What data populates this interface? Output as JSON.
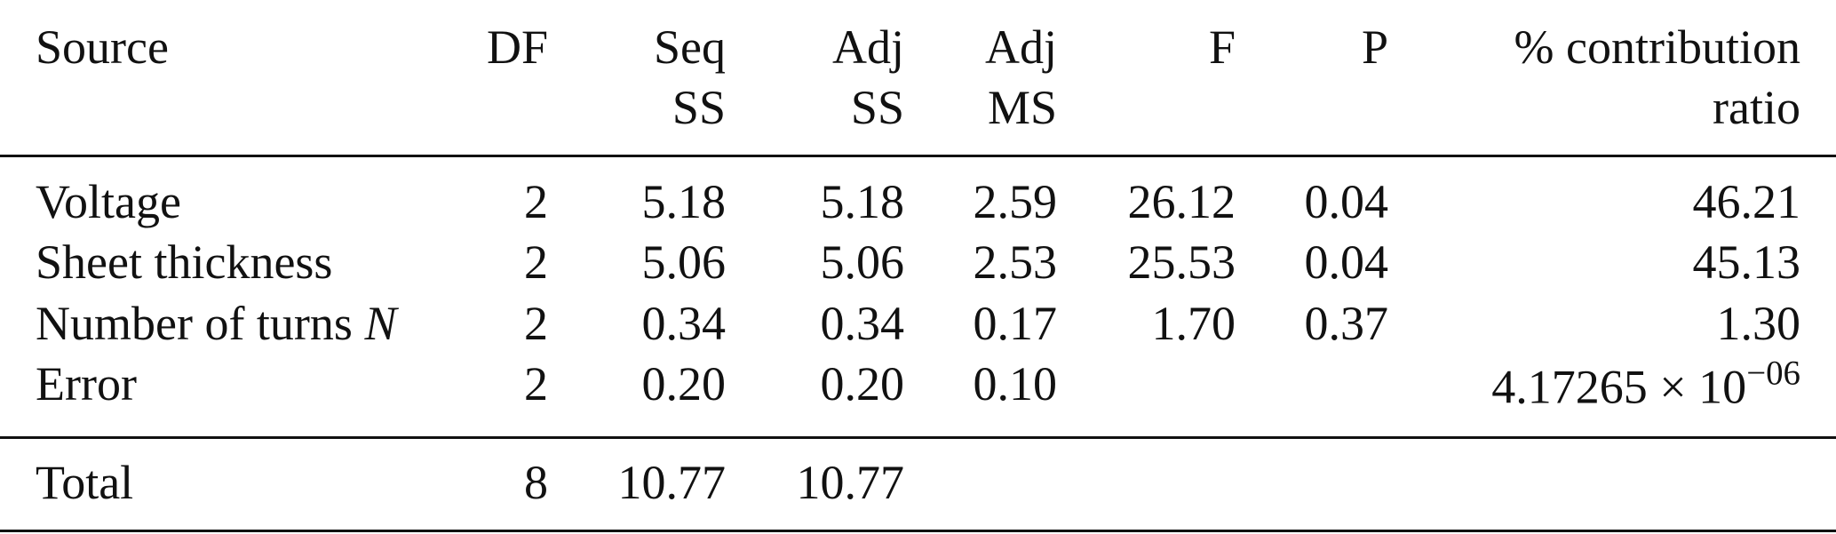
{
  "table": {
    "header": [
      [
        "Source"
      ],
      [
        "DF"
      ],
      [
        "Seq",
        "SS"
      ],
      [
        "Adj",
        "SS"
      ],
      [
        "Adj",
        "MS"
      ],
      [
        "F"
      ],
      [
        "P"
      ],
      [
        "% contribution",
        "ratio"
      ]
    ],
    "rows": [
      [
        "Voltage",
        "2",
        "5.18",
        "5.18",
        "2.59",
        "26.12",
        "0.04",
        "46.21"
      ],
      [
        "Sheet thickness",
        "2",
        "5.06",
        "5.06",
        "2.53",
        "25.53",
        "0.04",
        "45.13"
      ],
      [
        {
          "text": "Number of turns",
          "italic": "N"
        },
        "2",
        "0.34",
        "0.34",
        "0.17",
        "1.70",
        "0.37",
        "1.30"
      ],
      [
        "Error",
        "2",
        "0.20",
        "0.20",
        "0.10",
        null,
        null,
        {
          "base": "4.17265 × 10",
          "sup": "−06"
        }
      ]
    ],
    "total": [
      "Total",
      "8",
      "10.77",
      "10.77",
      null,
      null,
      null,
      null
    ]
  }
}
